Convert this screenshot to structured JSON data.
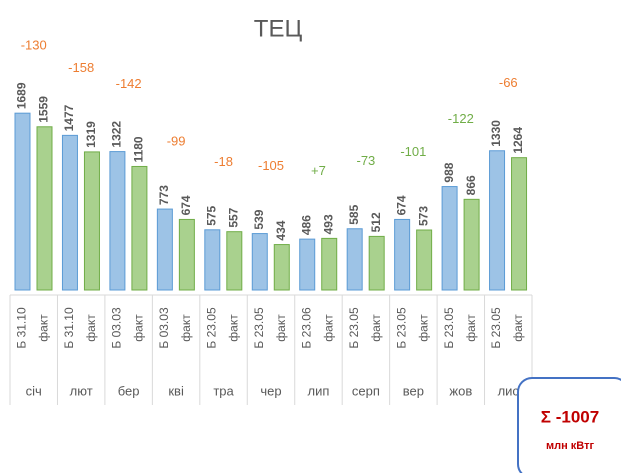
{
  "chart_data": {
    "type": "bar",
    "title": "ТЕЦ",
    "categories": [
      "січ",
      "лют",
      "бер",
      "кві",
      "тра",
      "чер",
      "лип",
      "серп",
      "вер",
      "жов",
      "лис"
    ],
    "series": [
      {
        "color": "#9dc3e6",
        "values": [
          1689,
          1477,
          1322,
          773,
          575,
          539,
          486,
          585,
          674,
          988,
          1330
        ],
        "labels": [
          "Б 31.10",
          "Б 31.10",
          "Б 03.03",
          "Б 03.03",
          "Б 23.05",
          "Б 23.05",
          "Б 23.06",
          "Б 23.05",
          "Б 23.05",
          "Б 23.05",
          "Б 23.05"
        ]
      },
      {
        "color": "#a9d18e",
        "values": [
          1559,
          1319,
          1180,
          674,
          557,
          434,
          493,
          512,
          573,
          866,
          1264
        ],
        "labels": [
          "факт",
          "факт",
          "факт",
          "факт",
          "факт",
          "факт",
          "факт",
          "факт",
          "факт",
          "факт",
          "факт"
        ]
      }
    ],
    "differences": {
      "values": [
        -130,
        -158,
        -142,
        -99,
        -18,
        -105,
        7,
        -73,
        -101,
        -122,
        -66
      ],
      "value_labels": [
        "-130",
        "-158",
        "-142",
        "-99",
        "-18",
        "-105",
        "+7",
        "-73",
        "-101",
        "-122",
        "-66"
      ],
      "colors": [
        "#ed7d31",
        "#ed7d31",
        "#ed7d31",
        "#ed7d31",
        "#ed7d31",
        "#ed7d31",
        "#70ad47",
        "#70ad47",
        "#70ad47",
        "#70ad47",
        "#ed7d31"
      ]
    },
    "ylim": [
      0,
      2770
    ],
    "total": {
      "label": "Σ -1007",
      "unit": "млн кВтг",
      "color": "#c00000"
    }
  }
}
